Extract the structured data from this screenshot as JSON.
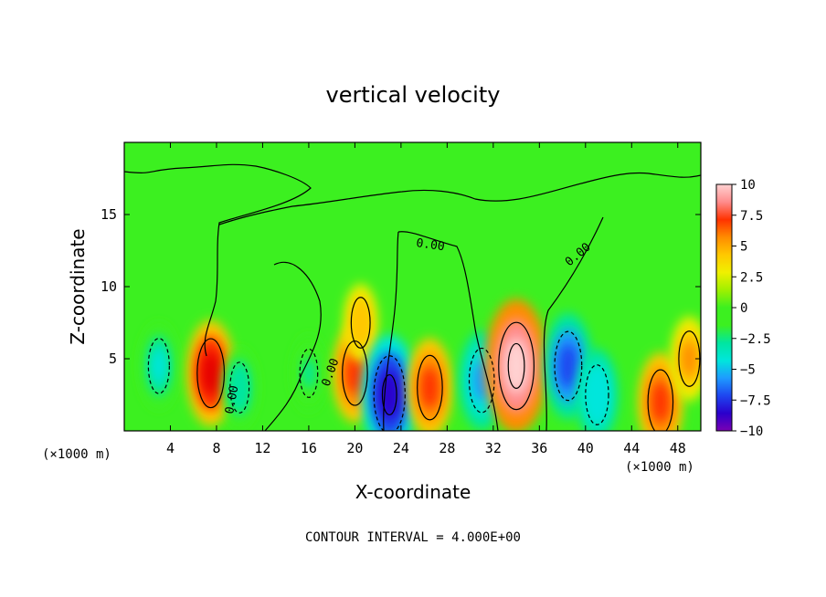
{
  "chart_data": {
    "type": "heatmap",
    "title": "vertical velocity",
    "xlabel": "X-coordinate",
    "ylabel": "Z-coordinate",
    "x_unit": "(×1000 m)",
    "x_unit_right": "(×1000 m)",
    "xlim": [
      0,
      50
    ],
    "ylim": [
      0,
      20
    ],
    "x_ticks": [
      4,
      8,
      12,
      16,
      20,
      24,
      28,
      32,
      36,
      40,
      44,
      48
    ],
    "x_tick_labels": [
      "4",
      "8",
      "12",
      "16",
      "20",
      "24",
      "28",
      "32",
      "36",
      "40",
      "44",
      "48"
    ],
    "y_ticks": [
      5,
      10,
      15
    ],
    "y_tick_labels": [
      "5",
      "10",
      "15"
    ],
    "colorbar": {
      "min": -10,
      "max": 10,
      "ticks": [
        10,
        7.5,
        5,
        2.5,
        0,
        -2.5,
        -5,
        -7.5,
        -10
      ],
      "tick_labels": [
        "10",
        "7.5",
        "5",
        "2.5",
        "0",
        "−2.5",
        "−5",
        "−7.5",
        "−10"
      ],
      "colors": [
        "#7a00b4",
        "#2a00cc",
        "#1e46f0",
        "#1e9bff",
        "#00e6dc",
        "#00e6a0",
        "#3cf020",
        "#a0f000",
        "#f0f000",
        "#ffc800",
        "#ff8c00",
        "#ff3200",
        "#e60000",
        "#ff8c8c",
        "#ffd2d2"
      ]
    },
    "contour_labels": [
      "0.00",
      "0.00",
      "0.00",
      "0.00"
    ],
    "contour_interval_text": "CONTOUR INTERVAL = 4.000E+00",
    "cells": [
      {
        "x": 3,
        "z": 4.5,
        "w": -4
      },
      {
        "x": 7.5,
        "z": 4,
        "w": 7
      },
      {
        "x": 10,
        "z": 3,
        "w": -3
      },
      {
        "x": 16,
        "z": 4,
        "w": -2.5
      },
      {
        "x": 20,
        "z": 4,
        "w": 6
      },
      {
        "x": 20.5,
        "z": 7.5,
        "w": 3
      },
      {
        "x": 23,
        "z": 2.5,
        "w": -9
      },
      {
        "x": 26.5,
        "z": 3,
        "w": 6
      },
      {
        "x": 31,
        "z": 3.5,
        "w": -6
      },
      {
        "x": 34,
        "z": 4.5,
        "w": 11
      },
      {
        "x": 38.5,
        "z": 4.5,
        "w": -7
      },
      {
        "x": 41,
        "z": 2.5,
        "w": -5
      },
      {
        "x": 46.5,
        "z": 2,
        "w": 6
      },
      {
        "x": 49,
        "z": 5,
        "w": 4
      }
    ]
  }
}
